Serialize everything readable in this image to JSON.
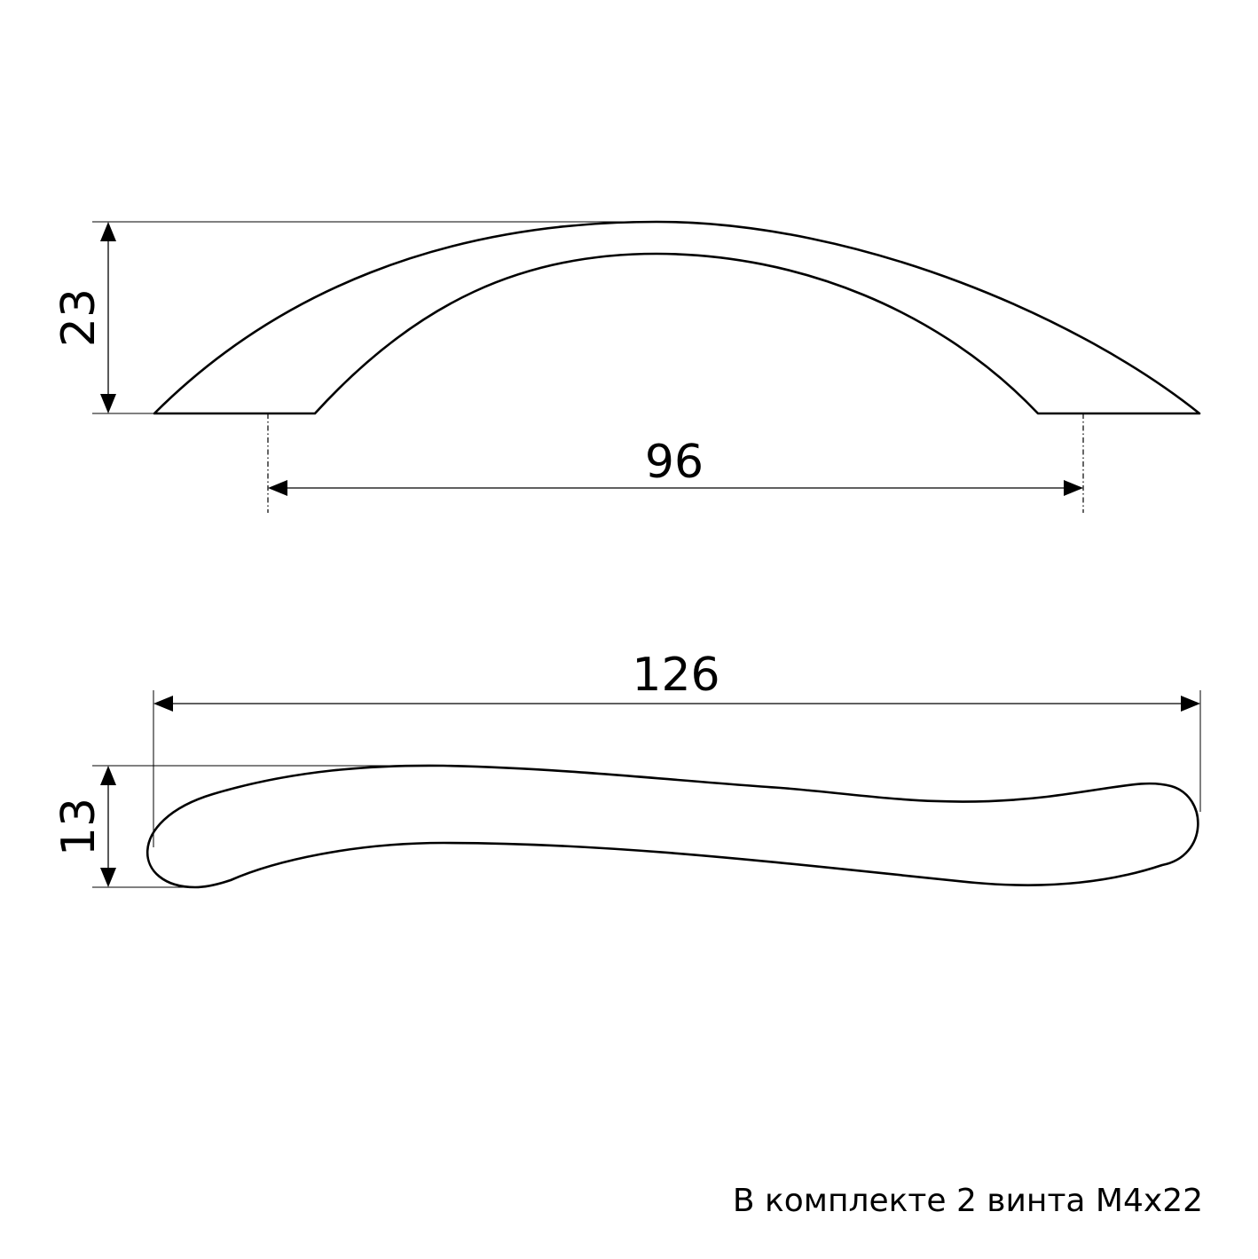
{
  "dimensions": {
    "top_view_height": "23",
    "hole_spacing": "96",
    "overall_length": "126",
    "side_view_height": "13"
  },
  "note": "В комплекте 2 винта М4х22",
  "colors": {
    "line": "#000000",
    "background": "#ffffff"
  }
}
